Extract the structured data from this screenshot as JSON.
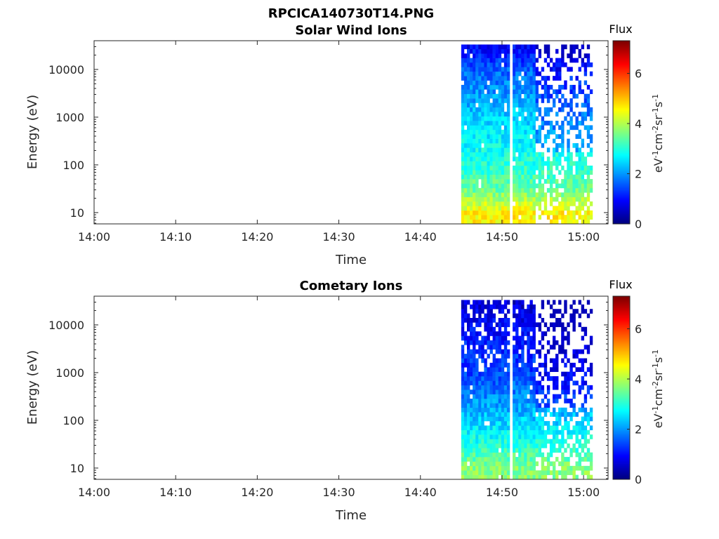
{
  "figure_title": "RPCICA140730T14.PNG",
  "chart_data": [
    {
      "type": "heatmap",
      "title": "Solar Wind Ions",
      "xlabel": "Time",
      "ylabel": "Energy (eV)",
      "yscale": "log",
      "xlim": [
        "14:00",
        "15:03"
      ],
      "ylim": [
        5.8,
        40000
      ],
      "x_ticks": [
        "14:00",
        "14:10",
        "14:20",
        "14:30",
        "14:40",
        "14:50",
        "15:00"
      ],
      "y_ticks": [
        "10",
        "100",
        "1000",
        "10000"
      ],
      "colorbar": {
        "title": "Flux",
        "label": "eV-1cm-2sr-1s-1",
        "range": [
          0,
          7.3
        ],
        "ticks": [
          "0",
          "2",
          "4",
          "6"
        ],
        "colormap": "jet"
      },
      "data_window": {
        "start": "14:45",
        "end": "15:01",
        "gap_at": "14:51",
        "sparse_after": "14:54"
      },
      "flux_profile": [
        {
          "energy_eV": 10,
          "flux": 4.6
        },
        {
          "energy_eV": 30,
          "flux": 3.5
        },
        {
          "energy_eV": 100,
          "flux": 3.0
        },
        {
          "energy_eV": 1000,
          "flux": 2.4
        },
        {
          "energy_eV": 10000,
          "flux": 1.6
        },
        {
          "energy_eV": 30000,
          "flux": 0.9
        }
      ]
    },
    {
      "type": "heatmap",
      "title": "Cometary Ions",
      "xlabel": "Time",
      "ylabel": "Energy (eV)",
      "yscale": "log",
      "xlim": [
        "14:00",
        "15:03"
      ],
      "ylim": [
        5.8,
        40000
      ],
      "x_ticks": [
        "14:00",
        "14:10",
        "14:20",
        "14:30",
        "14:40",
        "14:50",
        "15:00"
      ],
      "y_ticks": [
        "10",
        "100",
        "1000",
        "10000"
      ],
      "colorbar": {
        "title": "Flux",
        "label": "eV-1cm-2sr-1s-1",
        "range": [
          0,
          7.3
        ],
        "ticks": [
          "0",
          "2",
          "4",
          "6"
        ],
        "colormap": "jet"
      },
      "data_window": {
        "start": "14:45",
        "end": "15:01",
        "gap_at": "14:51",
        "sparse_after": "14:54"
      },
      "flux_profile": [
        {
          "energy_eV": 10,
          "flux": 3.7
        },
        {
          "energy_eV": 30,
          "flux": 3.0
        },
        {
          "energy_eV": 100,
          "flux": 2.4
        },
        {
          "energy_eV": 1000,
          "flux": 1.4
        },
        {
          "energy_eV": 10000,
          "flux": 0.9
        },
        {
          "energy_eV": 30000,
          "flux": 0.6
        }
      ]
    }
  ]
}
